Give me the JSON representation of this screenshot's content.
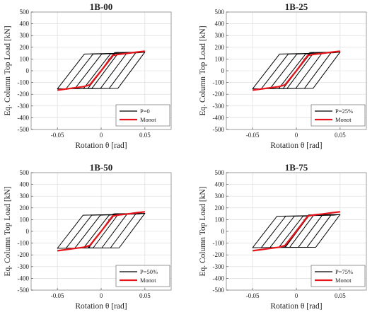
{
  "chart_data": [
    {
      "type": "line",
      "title": "1B-00",
      "xlabel": "Rotation θ [rad]",
      "ylabel": "Eq. Column Top Load [kN]",
      "xlim": [
        -0.08,
        0.08
      ],
      "ylim": [
        -500,
        500
      ],
      "xticks": [
        -0.05,
        0,
        0.05
      ],
      "yticks": [
        -500,
        -400,
        -300,
        -200,
        -100,
        0,
        100,
        200,
        300,
        400,
        500
      ],
      "grid": true,
      "legend_position": "bottom-right",
      "series": [
        {
          "name": "P=0",
          "color": "#000000",
          "kind": "cyclic",
          "peaks": [
            0.0075,
            0.01,
            0.015,
            0.02,
            0.03,
            0.04,
            0.05
          ],
          "Fpos": 155,
          "Fneg": -150
        },
        {
          "name": "Monot",
          "color": "#e8141b",
          "kind": "monotonic",
          "x": [
            -0.05,
            -0.04,
            -0.03,
            -0.02,
            -0.013,
            0,
            0.013,
            0.02,
            0.03,
            0.04,
            0.05
          ],
          "y": [
            -165,
            -155,
            -145,
            -135,
            -120,
            0,
            130,
            140,
            148,
            158,
            167
          ]
        }
      ]
    },
    {
      "type": "line",
      "title": "1B-25",
      "xlabel": "Rotation θ [rad]",
      "ylabel": "Eq. Column Top Load [kN]",
      "xlim": [
        -0.08,
        0.08
      ],
      "ylim": [
        -500,
        500
      ],
      "xticks": [
        -0.05,
        0,
        0.05
      ],
      "yticks": [
        -500,
        -400,
        -300,
        -200,
        -100,
        0,
        100,
        200,
        300,
        400,
        500
      ],
      "grid": true,
      "legend_position": "bottom-right",
      "series": [
        {
          "name": "P=25%",
          "color": "#000000",
          "kind": "cyclic",
          "peaks": [
            0.0075,
            0.01,
            0.015,
            0.02,
            0.03,
            0.04,
            0.05
          ],
          "Fpos": 155,
          "Fneg": -150
        },
        {
          "name": "Monot",
          "color": "#e8141b",
          "kind": "monotonic",
          "x": [
            -0.05,
            -0.04,
            -0.03,
            -0.02,
            -0.013,
            0,
            0.013,
            0.02,
            0.03,
            0.04,
            0.05
          ],
          "y": [
            -165,
            -155,
            -145,
            -135,
            -120,
            0,
            130,
            140,
            148,
            158,
            167
          ]
        }
      ]
    },
    {
      "type": "line",
      "title": "1B-50",
      "xlabel": "Rotation θ [rad]",
      "ylabel": "Eq. Column Top Load [kN]",
      "xlim": [
        -0.08,
        0.08
      ],
      "ylim": [
        -500,
        500
      ],
      "xticks": [
        -0.05,
        0,
        0.05
      ],
      "yticks": [
        -500,
        -400,
        -300,
        -200,
        -100,
        0,
        100,
        200,
        300,
        400,
        500
      ],
      "grid": true,
      "legend_position": "bottom-right",
      "series": [
        {
          "name": "P=50%",
          "color": "#000000",
          "kind": "cyclic",
          "peaks": [
            0.0075,
            0.01,
            0.015,
            0.02,
            0.03,
            0.04,
            0.05
          ],
          "Fpos": 150,
          "Fneg": -140
        },
        {
          "name": "Monot",
          "color": "#e8141b",
          "kind": "monotonic",
          "x": [
            -0.05,
            -0.04,
            -0.03,
            -0.02,
            -0.013,
            0,
            0.013,
            0.02,
            0.03,
            0.04,
            0.05
          ],
          "y": [
            -165,
            -155,
            -145,
            -135,
            -120,
            0,
            130,
            140,
            148,
            158,
            167
          ]
        }
      ]
    },
    {
      "type": "line",
      "title": "1B-75",
      "xlabel": "Rotation θ [rad]",
      "ylabel": "Eq. Column Top Load [kN]",
      "xlim": [
        -0.08,
        0.08
      ],
      "ylim": [
        -500,
        500
      ],
      "xticks": [
        -0.05,
        0,
        0.05
      ],
      "yticks": [
        -500,
        -400,
        -300,
        -200,
        -100,
        0,
        100,
        200,
        300,
        400,
        500
      ],
      "grid": true,
      "legend_position": "bottom-right",
      "series": [
        {
          "name": "P=75%",
          "color": "#000000",
          "kind": "cyclic",
          "peaks": [
            0.0075,
            0.01,
            0.015,
            0.02,
            0.03,
            0.04,
            0.05
          ],
          "Fpos": 140,
          "Fneg": -135
        },
        {
          "name": "Monot",
          "color": "#e8141b",
          "kind": "monotonic",
          "x": [
            -0.05,
            -0.04,
            -0.03,
            -0.02,
            -0.013,
            0,
            0.013,
            0.02,
            0.03,
            0.04,
            0.05
          ],
          "y": [
            -165,
            -155,
            -145,
            -135,
            -120,
            0,
            130,
            140,
            148,
            158,
            167
          ]
        }
      ]
    }
  ]
}
